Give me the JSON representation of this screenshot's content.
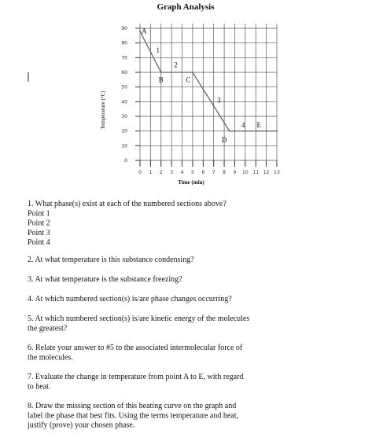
{
  "header": {
    "title": "Graph Analysis"
  },
  "chart_data": {
    "type": "line",
    "x_label": "Time (min)",
    "y_label": "Temperature (°C)",
    "x": [
      0,
      2,
      5,
      8.5,
      13
    ],
    "values": [
      88,
      60,
      60,
      20,
      20
    ],
    "color": "#666666",
    "xlim": [
      0,
      13
    ],
    "xticks": [
      0,
      1,
      2,
      3,
      4,
      5,
      6,
      7,
      8,
      9,
      10,
      11,
      12,
      13
    ],
    "ylim": [
      0,
      90
    ],
    "yticks": [
      0,
      10,
      20,
      30,
      40,
      50,
      60,
      70,
      80,
      90
    ],
    "grid": true,
    "annotations": [
      {
        "text": "A",
        "x": 0.4,
        "y": 88
      },
      {
        "text": "1",
        "x": 1.7,
        "y": 75
      },
      {
        "text": "B",
        "x": 2,
        "y": 55
      },
      {
        "text": "2",
        "x": 3.4,
        "y": 65
      },
      {
        "text": "C",
        "x": 4.6,
        "y": 55
      },
      {
        "text": "3",
        "x": 7.5,
        "y": 41
      },
      {
        "text": "D",
        "x": 8,
        "y": 14
      },
      {
        "text": "4",
        "x": 9.8,
        "y": 24
      },
      {
        "text": "E",
        "x": 11.3,
        "y": 24
      }
    ]
  },
  "questions": [
    [
      "1. What phase(s) exist at each of the numbered sections above?",
      "Point 1",
      "Point 2",
      "Point 3",
      "Point 4"
    ],
    [
      "2. At what temperature is this substance condensing?"
    ],
    [
      "3. At what temperature is the substance freezing?"
    ],
    [
      "4. At which numbered section(s) is/are phase changes occurring?"
    ],
    [
      "5. At which numbered section(s) is/are kinetic energy of the molecules",
      "the greatest?"
    ],
    [
      "6. Relate your answer to #5 to the associated intermolecular force of",
      "the molecules."
    ],
    [
      "7. Evaluate the change in temperature from point A to E, with regard",
      "to heat."
    ],
    [
      "8. Draw the missing section of this heating curve on the graph and",
      "label the phase that best fits. Using the terms temperature and heat,",
      "justify (prove) your chosen phase."
    ]
  ]
}
